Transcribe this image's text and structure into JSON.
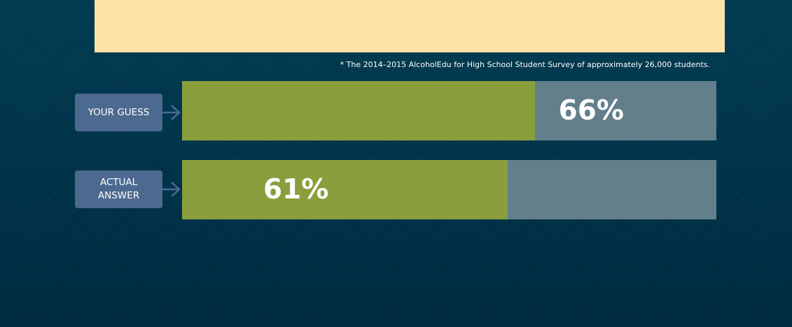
{
  "footnote": "* The 2014–2015 AlcoholEdu for High School Student Survey of approximately 26,000 students.",
  "guess": {
    "label": "YOUR GUESS",
    "value_text": "66%",
    "percent": 66
  },
  "actual": {
    "label_line1": "ACTUAL",
    "label_line2": "ANSWER",
    "value_text": "61%",
    "percent": 61
  },
  "colors": {
    "background": "#01384e",
    "panel": "#fee3a8",
    "tag": "#4c6a90",
    "bar_track": "#627f8b",
    "bar_fill": "#8a9e3d",
    "arrow": "#4c6a90"
  },
  "icons": {
    "pointer": "arrow-right-icon"
  }
}
